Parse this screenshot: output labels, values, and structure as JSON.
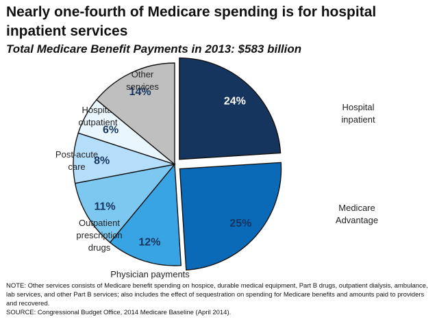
{
  "title": "Nearly one-fourth of Medicare spending is for hospital inpatient services",
  "subtitle": "Total Medicare Benefit Payments in 2013:  $583 billion",
  "chart_data": {
    "type": "pie",
    "total": "$583 billion",
    "slices": [
      {
        "name": "Hospital inpatient",
        "value": 24,
        "label": "24%",
        "color": "#15355e",
        "label_color": "#ffffff",
        "exploded": true
      },
      {
        "name": "Medicare Advantage",
        "value": 25,
        "label": "25%",
        "color": "#0b6ab8",
        "label_color": "#15355e",
        "exploded": true
      },
      {
        "name": "Physician payments",
        "value": 12,
        "label": "12%",
        "color": "#38a4e3",
        "label_color": "#15355e",
        "exploded": false
      },
      {
        "name": "Outpatient prescription drugs",
        "value": 11,
        "label": "11%",
        "color": "#7cc8f0",
        "label_color": "#15355e",
        "exploded": false
      },
      {
        "name": "Post-acute care",
        "value": 8,
        "label": "8%",
        "color": "#b4defa",
        "label_color": "#15355e",
        "exploded": false
      },
      {
        "name": "Hospital outpatient",
        "value": 6,
        "label": "6%",
        "color": "#eaf6fd",
        "label_color": "#15355e",
        "exploded": false
      },
      {
        "name": "Other services",
        "value": 14,
        "label": "14%",
        "color": "#bfbfbf",
        "label_color": "#15355e",
        "exploded": false
      }
    ]
  },
  "note": "NOTE: Other services consists of Medicare benefit spending on hospice, durable medical equipment, Part B drugs, outpatient dialysis, ambulance, lab services, and other Part B services; also includes  the effect of sequestration on spending for Medicare benefits and amounts paid to providers and recovered.",
  "source": "SOURCE: Congressional Budget Office, 2014 Medicare Baseline (April 2014)."
}
